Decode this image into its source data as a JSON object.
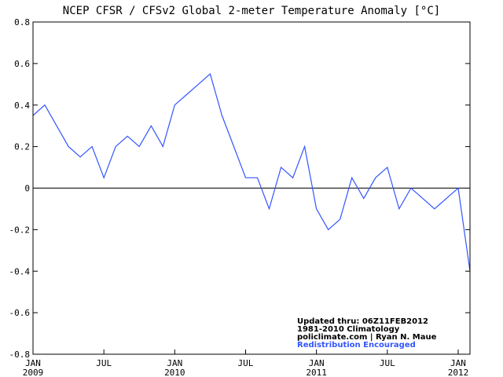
{
  "chart_data": {
    "type": "line",
    "title": "NCEP CFSR / CFSv2 Global 2-meter Temperature Anomaly [°C]",
    "x": [
      "2009-01",
      "2009-02",
      "2009-03",
      "2009-04",
      "2009-05",
      "2009-06",
      "2009-07",
      "2009-08",
      "2009-09",
      "2009-10",
      "2009-11",
      "2009-12",
      "2010-01",
      "2010-02",
      "2010-03",
      "2010-04",
      "2010-05",
      "2010-06",
      "2010-07",
      "2010-08",
      "2010-09",
      "2010-10",
      "2010-11",
      "2010-12",
      "2011-01",
      "2011-02",
      "2011-03",
      "2011-04",
      "2011-05",
      "2011-06",
      "2011-07",
      "2011-08",
      "2011-09",
      "2011-10",
      "2011-11",
      "2011-12",
      "2012-01",
      "2012-02"
    ],
    "series": [
      {
        "color": "#3355ff",
        "values": [
          0.35,
          0.4,
          0.3,
          0.2,
          0.15,
          0.2,
          0.05,
          0.2,
          0.25,
          0.2,
          0.3,
          0.2,
          0.4,
          0.45,
          0.5,
          0.55,
          0.35,
          0.2,
          0.05,
          0.05,
          -0.1,
          0.1,
          0.05,
          0.2,
          -0.1,
          -0.2,
          -0.15,
          0.05,
          -0.05,
          0.05,
          0.1,
          -0.1,
          0.0,
          -0.05,
          -0.1,
          -0.05,
          0.0,
          -0.4
        ]
      }
    ],
    "xlim": [
      "2009-01",
      "2012-02"
    ],
    "xticks": [
      {
        "value": "2009-01",
        "label": "JAN"
      },
      {
        "value": "2009-07",
        "label": "JUL"
      },
      {
        "value": "2010-01",
        "label": "JAN"
      },
      {
        "value": "2010-07",
        "label": "JUL"
      },
      {
        "value": "2011-01",
        "label": "JAN"
      },
      {
        "value": "2011-07",
        "label": "JUL"
      },
      {
        "value": "2012-01",
        "label": "JAN"
      }
    ],
    "year_labels": [
      {
        "value": "2009-01",
        "label": "2009"
      },
      {
        "value": "2010-01",
        "label": "2010"
      },
      {
        "value": "2011-01",
        "label": "2011"
      },
      {
        "value": "2012-01",
        "label": "2012"
      }
    ],
    "ylim": [
      -0.8,
      0.8
    ],
    "yticks": [
      -0.8,
      -0.6,
      -0.4,
      -0.2,
      0,
      0.2,
      0.4,
      0.6,
      0.8
    ],
    "reference_line": 0,
    "annotations": [
      "Updated thru: 06Z11FEB2012",
      "1981-2010 Climatology",
      "policlimate.com | Ryan N. Maue",
      "Redistribution Encouraged"
    ]
  }
}
